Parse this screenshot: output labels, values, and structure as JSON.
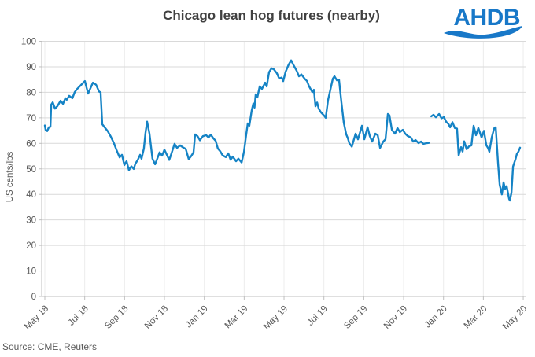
{
  "title": "Chicago lean hog futures (nearby)",
  "logo": {
    "text": "AHDB"
  },
  "source": "Source: CME, Reuters",
  "y_axis": {
    "label": "US cents/lbs",
    "ticks": [
      100,
      90,
      80,
      70,
      60,
      50,
      40,
      30,
      20,
      10,
      0
    ]
  },
  "x_axis": {
    "labels": [
      "May 18",
      "Jul 18",
      "Sep 18",
      "Nov 18",
      "Jan 19",
      "Mar 19",
      "May 19",
      "Jul 19",
      "Sep 19",
      "Nov 19",
      "Jan 20",
      "Mar 20",
      "May 20"
    ]
  },
  "colors": {
    "line": "#1583c5",
    "logo": "#1878c8",
    "grid_h": "#d9d9d9",
    "grid_v": "#ececec",
    "axis": "#bfbfbf",
    "text": "#595959",
    "title_text": "#404040"
  },
  "chart_data": {
    "type": "line",
    "title": "Chicago lean hog futures (nearby)",
    "xlabel": "",
    "ylabel": "US cents/lbs",
    "ylim": [
      0,
      100
    ],
    "grid": "horizontal-strong, vertical-faint",
    "legend": "none",
    "x_unit": "months since May 2018 (0 = May 18 tick, 24 = May 20 tick)",
    "x_tick_positions_months": [
      0,
      2,
      4,
      6,
      8,
      10,
      12,
      14,
      16,
      18,
      20,
      22,
      24
    ],
    "note": "single blue price line with a visible data gap between late Dec 19 and early Jan 20",
    "series": [
      {
        "name": "Chicago lean hog nearby futures price",
        "segments": [
          [
            [
              0.0,
              67.0
            ],
            [
              0.04,
              65.3
            ],
            [
              0.12,
              64.8
            ],
            [
              0.2,
              66.3
            ],
            [
              0.28,
              66.5
            ],
            [
              0.32,
              75.2
            ],
            [
              0.4,
              76.1
            ],
            [
              0.51,
              73.6
            ],
            [
              0.63,
              74.6
            ],
            [
              0.79,
              76.7
            ],
            [
              0.91,
              75.5
            ],
            [
              1.03,
              77.7
            ],
            [
              1.1,
              77.1
            ],
            [
              1.22,
              78.6
            ],
            [
              1.38,
              77.7
            ],
            [
              1.5,
              80.1
            ],
            [
              1.62,
              81.3
            ],
            [
              1.82,
              82.9
            ],
            [
              2.01,
              84.4
            ],
            [
              2.17,
              79.5
            ],
            [
              2.41,
              83.8
            ],
            [
              2.57,
              83.0
            ],
            [
              2.72,
              80.3
            ],
            [
              2.8,
              80.0
            ],
            [
              2.88,
              67.5
            ],
            [
              3.0,
              66.3
            ],
            [
              3.16,
              64.7
            ],
            [
              3.32,
              62.5
            ],
            [
              3.47,
              60.0
            ],
            [
              3.59,
              57.5
            ],
            [
              3.75,
              54.5
            ],
            [
              3.87,
              55.5
            ],
            [
              3.99,
              51.5
            ],
            [
              4.1,
              53.0
            ],
            [
              4.22,
              49.5
            ],
            [
              4.34,
              51.0
            ],
            [
              4.46,
              50.0
            ],
            [
              4.54,
              52.0
            ],
            [
              4.66,
              53.5
            ],
            [
              4.78,
              55.5
            ],
            [
              4.85,
              54.0
            ],
            [
              4.97,
              58.0
            ],
            [
              5.05,
              64.0
            ],
            [
              5.13,
              68.5
            ],
            [
              5.25,
              63.8
            ],
            [
              5.4,
              54.0
            ],
            [
              5.53,
              51.8
            ],
            [
              5.64,
              54.0
            ],
            [
              5.76,
              56.5
            ],
            [
              5.88,
              55.2
            ],
            [
              6.0,
              57.5
            ],
            [
              6.12,
              55.5
            ],
            [
              6.24,
              53.5
            ],
            [
              6.35,
              56.0
            ],
            [
              6.51,
              59.8
            ],
            [
              6.63,
              58.2
            ],
            [
              6.79,
              59.2
            ],
            [
              6.91,
              58.5
            ],
            [
              7.07,
              57.8
            ],
            [
              7.22,
              53.8
            ],
            [
              7.34,
              55.0
            ],
            [
              7.46,
              56.5
            ],
            [
              7.54,
              63.5
            ],
            [
              7.66,
              62.8
            ],
            [
              7.78,
              61.2
            ],
            [
              7.93,
              62.8
            ],
            [
              8.09,
              63.2
            ],
            [
              8.21,
              62.3
            ],
            [
              8.33,
              63.4
            ],
            [
              8.45,
              62.0
            ],
            [
              8.57,
              61.0
            ],
            [
              8.68,
              58.0
            ],
            [
              8.8,
              56.9
            ],
            [
              8.92,
              55.3
            ],
            [
              9.08,
              54.6
            ],
            [
              9.2,
              56.1
            ],
            [
              9.32,
              53.6
            ],
            [
              9.43,
              54.8
            ],
            [
              9.59,
              53.0
            ],
            [
              9.71,
              54.0
            ],
            [
              9.87,
              52.5
            ],
            [
              9.99,
              56.7
            ],
            [
              10.11,
              63.8
            ],
            [
              10.18,
              67.8
            ],
            [
              10.26,
              66.9
            ],
            [
              10.38,
              73.0
            ],
            [
              10.46,
              75.6
            ],
            [
              10.52,
              74.0
            ],
            [
              10.58,
              79.2
            ],
            [
              10.66,
              78.0
            ],
            [
              10.78,
              82.3
            ],
            [
              10.89,
              81.3
            ],
            [
              11.05,
              83.8
            ],
            [
              11.13,
              82.3
            ],
            [
              11.25,
              87.9
            ],
            [
              11.37,
              89.4
            ],
            [
              11.49,
              89.0
            ],
            [
              11.64,
              87.5
            ],
            [
              11.76,
              85.4
            ],
            [
              11.88,
              85.8
            ],
            [
              11.96,
              84.4
            ],
            [
              12.08,
              88.0
            ],
            [
              12.24,
              91.0
            ],
            [
              12.36,
              92.5
            ],
            [
              12.48,
              90.6
            ],
            [
              12.63,
              88.5
            ],
            [
              12.75,
              86.3
            ],
            [
              12.87,
              87.0
            ],
            [
              13.03,
              85.4
            ],
            [
              13.15,
              84.4
            ],
            [
              13.26,
              82.3
            ],
            [
              13.42,
              80.1
            ],
            [
              13.5,
              81.0
            ],
            [
              13.58,
              74.5
            ],
            [
              13.66,
              76.0
            ],
            [
              13.74,
              73.6
            ],
            [
              13.86,
              72.1
            ],
            [
              14.01,
              70.9
            ],
            [
              14.09,
              70.0
            ],
            [
              14.21,
              77.0
            ],
            [
              14.33,
              81.3
            ],
            [
              14.45,
              85.4
            ],
            [
              14.53,
              86.3
            ],
            [
              14.65,
              84.7
            ],
            [
              14.76,
              85.0
            ],
            [
              14.88,
              76.0
            ],
            [
              15.0,
              68.0
            ],
            [
              15.12,
              63.5
            ],
            [
              15.2,
              62.0
            ],
            [
              15.28,
              60.0
            ],
            [
              15.4,
              58.7
            ],
            [
              15.59,
              63.8
            ],
            [
              15.71,
              61.6
            ],
            [
              15.91,
              66.9
            ],
            [
              16.03,
              61.6
            ],
            [
              16.19,
              66.3
            ],
            [
              16.3,
              62.9
            ],
            [
              16.42,
              60.7
            ],
            [
              16.58,
              63.8
            ],
            [
              16.7,
              63.2
            ],
            [
              16.82,
              58.2
            ],
            [
              16.98,
              60.7
            ],
            [
              17.09,
              61.6
            ],
            [
              17.21,
              71.5
            ],
            [
              17.29,
              71.0
            ],
            [
              17.41,
              65.3
            ],
            [
              17.57,
              63.8
            ],
            [
              17.69,
              66.0
            ],
            [
              17.81,
              64.4
            ],
            [
              17.96,
              65.3
            ],
            [
              18.08,
              63.8
            ],
            [
              18.2,
              62.9
            ],
            [
              18.36,
              62.3
            ],
            [
              18.48,
              60.7
            ],
            [
              18.6,
              61.3
            ],
            [
              18.75,
              60.1
            ],
            [
              18.87,
              60.7
            ],
            [
              18.99,
              59.8
            ],
            [
              19.15,
              60.1
            ],
            [
              19.27,
              60.2
            ]
          ],
          [
            [
              19.39,
              70.6
            ],
            [
              19.5,
              71.2
            ],
            [
              19.62,
              70.2
            ],
            [
              19.78,
              71.5
            ],
            [
              19.9,
              69.8
            ],
            [
              20.02,
              70.3
            ],
            [
              20.13,
              68.5
            ],
            [
              20.25,
              67.6
            ],
            [
              20.33,
              66.3
            ],
            [
              20.45,
              68.3
            ],
            [
              20.57,
              66.0
            ],
            [
              20.68,
              65.8
            ],
            [
              20.76,
              55.3
            ],
            [
              20.88,
              58.5
            ],
            [
              20.96,
              56.8
            ],
            [
              21.04,
              60.8
            ],
            [
              21.16,
              57.7
            ],
            [
              21.28,
              58.8
            ],
            [
              21.4,
              59.2
            ],
            [
              21.51,
              66.9
            ],
            [
              21.63,
              63.2
            ],
            [
              21.75,
              66.0
            ],
            [
              21.91,
              62.3
            ],
            [
              22.03,
              64.9
            ],
            [
              22.15,
              59.2
            ],
            [
              22.23,
              58.2
            ],
            [
              22.3,
              56.7
            ],
            [
              22.42,
              62.3
            ],
            [
              22.54,
              65.9
            ],
            [
              22.62,
              66.3
            ],
            [
              22.74,
              52.0
            ],
            [
              22.82,
              43.8
            ],
            [
              22.93,
              40.0
            ],
            [
              23.01,
              44.7
            ],
            [
              23.09,
              42.2
            ],
            [
              23.17,
              43.2
            ],
            [
              23.29,
              38.2
            ],
            [
              23.33,
              37.6
            ],
            [
              23.41,
              40.7
            ],
            [
              23.49,
              50.9
            ],
            [
              23.61,
              53.8
            ],
            [
              23.68,
              55.8
            ],
            [
              23.76,
              56.8
            ],
            [
              23.84,
              58.3
            ]
          ]
        ]
      }
    ]
  }
}
